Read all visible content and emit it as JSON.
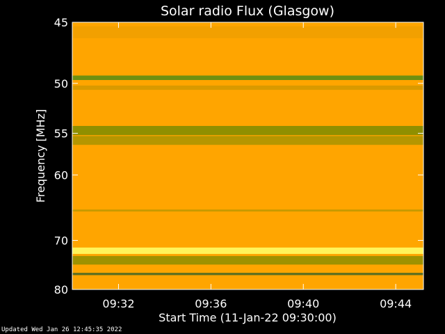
{
  "chart_data": {
    "type": "heatmap",
    "title": "Solar radio Flux (Glasgow)",
    "xlabel": "Start Time (11-Jan-22 09:30:00)",
    "ylabel": "Frequency [MHz]",
    "x_ticks": [
      "09:32",
      "09:36",
      "09:40",
      "09:44"
    ],
    "x_tick_minutes": [
      2,
      6,
      10,
      14
    ],
    "xlim_minutes": [
      0,
      15.2
    ],
    "y_ticks": [
      45,
      50,
      55,
      60,
      70,
      80
    ],
    "y_scale": "reciprocal",
    "ylim": [
      45,
      80
    ],
    "grid": false,
    "background_color": "#ffa500",
    "bands": [
      {
        "freq_from": 45.3,
        "freq_to": 46.2,
        "intensity": "elevated",
        "color": "#f2a000"
      },
      {
        "freq_from": 49.3,
        "freq_to": 49.7,
        "intensity": "interference",
        "color": "#6f8f10"
      },
      {
        "freq_from": 50.2,
        "freq_to": 50.6,
        "intensity": "low",
        "color": "#d99a00"
      },
      {
        "freq_from": 54.2,
        "freq_to": 55.2,
        "intensity": "low",
        "color": "#8f8f00"
      },
      {
        "freq_from": 55.3,
        "freq_to": 56.3,
        "intensity": "low",
        "color": "#b59600"
      },
      {
        "freq_from": 64.9,
        "freq_to": 65.2,
        "intensity": "low",
        "color": "#c79a00"
      },
      {
        "freq_from": 71.3,
        "freq_to": 72.5,
        "intensity": "high",
        "color": "#fff45a"
      },
      {
        "freq_from": 72.9,
        "freq_to": 74.6,
        "intensity": "low",
        "color": "#9e9200"
      },
      {
        "freq_from": 76.3,
        "freq_to": 76.8,
        "intensity": "low",
        "color": "#607020"
      }
    ]
  },
  "footer": {
    "updated": "Updated Wed Jan 26 12:45:35 2022"
  }
}
